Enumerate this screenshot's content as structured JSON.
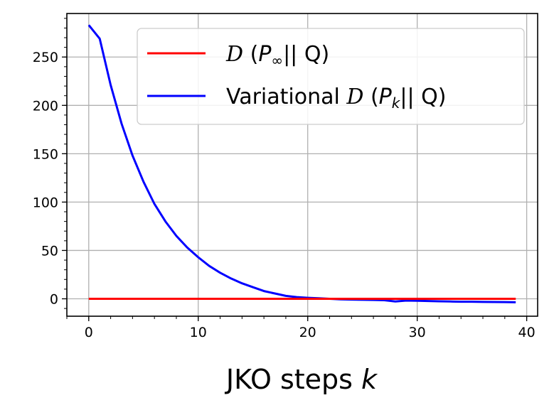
{
  "chart_data": {
    "type": "line",
    "title": "",
    "xlabel_text": "JKO steps ",
    "xlabel_var": "k",
    "ylabel": "",
    "xlim": [
      -2,
      41
    ],
    "ylim": [
      -18,
      295
    ],
    "grid": true,
    "legend_position": "top-right",
    "x_ticks": [
      0,
      10,
      20,
      30,
      40
    ],
    "y_ticks": [
      0,
      50,
      100,
      150,
      200,
      250
    ],
    "x_tick_labels": [
      "0",
      "10",
      "20",
      "30",
      "40"
    ],
    "y_tick_labels": [
      "0",
      "50",
      "100",
      "150",
      "200",
      "250"
    ],
    "series": [
      {
        "key": "target",
        "color": "#ff0000",
        "legend": {
          "prefix": "",
          "div": "D",
          "open": " (",
          "sub_base": "P",
          "sub": "∞",
          "close": "|| Q)"
        },
        "x": [
          0,
          39
        ],
        "y": [
          0,
          0
        ]
      },
      {
        "key": "variational",
        "color": "#0000ff",
        "legend": {
          "prefix": "Variational ",
          "div": "D",
          "open": " (",
          "sub_base": "P",
          "sub": "k",
          "close": "|| Q)"
        },
        "x": [
          0,
          1,
          2,
          3,
          4,
          5,
          6,
          7,
          8,
          9,
          10,
          11,
          12,
          13,
          14,
          15,
          16,
          17,
          18,
          19,
          20,
          21,
          22,
          23,
          24,
          25,
          26,
          27,
          28,
          29,
          30,
          31,
          32,
          33,
          34,
          35,
          36,
          37,
          38,
          39
        ],
        "y": [
          283,
          269,
          221,
          181,
          148,
          121,
          98,
          80,
          65,
          53,
          43,
          34,
          27,
          21,
          16,
          12,
          8,
          5.5,
          3,
          1.8,
          1,
          0.5,
          0,
          -0.5,
          -0.8,
          -1,
          -1.2,
          -1.5,
          -2.8,
          -1.8,
          -2,
          -2.3,
          -2.6,
          -2.8,
          -3,
          -3,
          -3.2,
          -3.3,
          -3.4,
          -3.6
        ]
      }
    ]
  }
}
